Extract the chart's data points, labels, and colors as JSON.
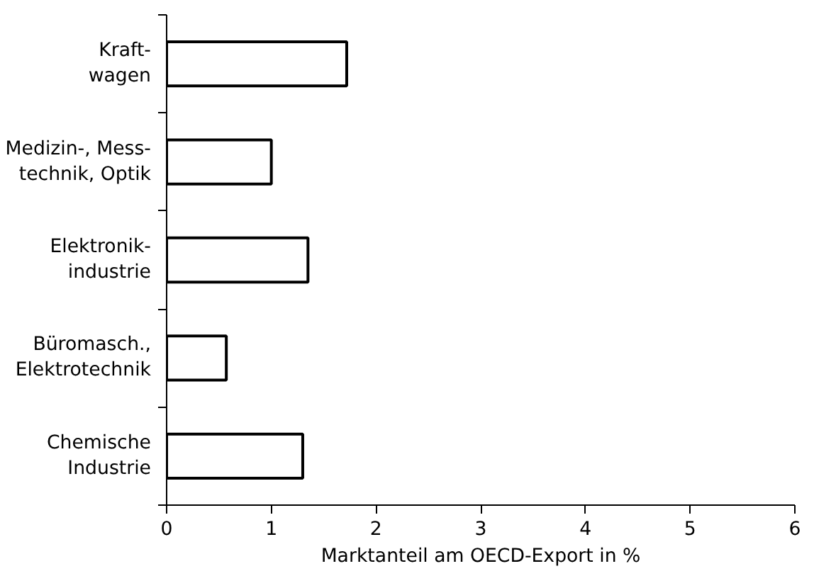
{
  "chart_data": {
    "type": "bar",
    "orientation": "horizontal",
    "categories": [
      "Kraft-\nwagen",
      "Medizin-, Mess-\ntechnik, Optik",
      "Elektronik-\nindustrie",
      "Büromasch.,\nElektrotechnik",
      "Chemische\nIndustrie"
    ],
    "values": [
      1.72,
      1.0,
      1.35,
      0.57,
      1.3
    ],
    "color": "#ffffff",
    "xlabel": "Marktanteil am OECD-Export in %",
    "xlim": [
      0,
      6
    ],
    "xticks": [
      0,
      1,
      2,
      3,
      4,
      5,
      6
    ],
    "grid": false
  }
}
